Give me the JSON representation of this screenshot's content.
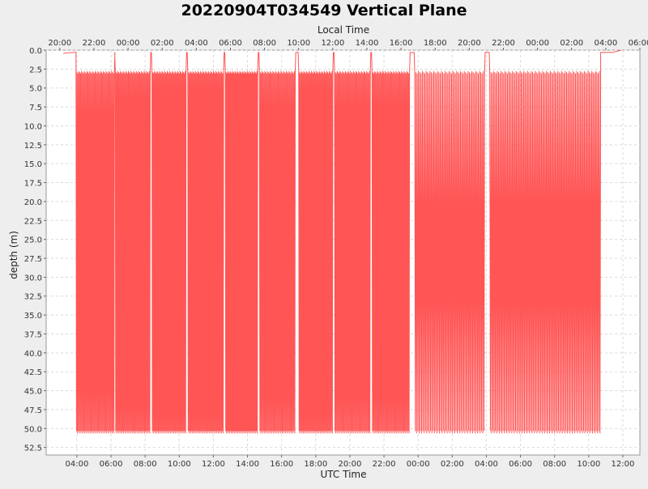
{
  "chart_data": {
    "type": "line",
    "title": "20220904T034549 Vertical Plane",
    "top_axis_label": "Local Time",
    "xlabel": "UTC Time",
    "ylabel": "depth (m)",
    "y_inverted": true,
    "ylim": [
      0,
      53.5
    ],
    "yticks": [
      "0.0",
      "2.5",
      "5.0",
      "7.5",
      "10.0",
      "12.5",
      "15.0",
      "17.5",
      "20.0",
      "22.5",
      "25.0",
      "27.5",
      "30.0",
      "32.5",
      "35.0",
      "37.5",
      "40.0",
      "42.5",
      "45.0",
      "47.5",
      "50.0",
      "52.5"
    ],
    "xlim_hours": [
      2.2,
      37.0
    ],
    "x_ticks_utc": [
      {
        "h": 4,
        "label": "04:00"
      },
      {
        "h": 6,
        "label": "06:00"
      },
      {
        "h": 8,
        "label": "08:00"
      },
      {
        "h": 10,
        "label": "10:00"
      },
      {
        "h": 12,
        "label": "12:00"
      },
      {
        "h": 14,
        "label": "14:00"
      },
      {
        "h": 16,
        "label": "16:00"
      },
      {
        "h": 18,
        "label": "18:00"
      },
      {
        "h": 20,
        "label": "20:00"
      },
      {
        "h": 22,
        "label": "22:00"
      },
      {
        "h": 24,
        "label": "00:00"
      },
      {
        "h": 26,
        "label": "02:00"
      },
      {
        "h": 28,
        "label": "04:00"
      },
      {
        "h": 30,
        "label": "06:00"
      },
      {
        "h": 32,
        "label": "08:00"
      },
      {
        "h": 34,
        "label": "10:00"
      },
      {
        "h": 36,
        "label": "12:00"
      }
    ],
    "x_ticks_local": [
      {
        "h": 3,
        "label": "20:00"
      },
      {
        "h": 5,
        "label": "22:00"
      },
      {
        "h": 7,
        "label": "00:00"
      },
      {
        "h": 9,
        "label": "02:00"
      },
      {
        "h": 11,
        "label": "04:00"
      },
      {
        "h": 13,
        "label": "06:00"
      },
      {
        "h": 15,
        "label": "08:00"
      },
      {
        "h": 17,
        "label": "10:00"
      },
      {
        "h": 19,
        "label": "12:00"
      },
      {
        "h": 21,
        "label": "14:00"
      },
      {
        "h": 23,
        "label": "16:00"
      },
      {
        "h": 25,
        "label": "18:00"
      },
      {
        "h": 27,
        "label": "20:00"
      },
      {
        "h": 29,
        "label": "22:00"
      },
      {
        "h": 31,
        "label": "00:00"
      },
      {
        "h": 33,
        "label": "02:00"
      },
      {
        "h": 35,
        "label": "04:00"
      },
      {
        "h": 37,
        "label": "06:00"
      }
    ],
    "grid": true,
    "series": [
      {
        "color": "#ff5555",
        "surface_depth_m": 2.8,
        "bottom_depth_m": 50.3,
        "segments": [
          {
            "start_h": 3.95,
            "end_h": 6.2,
            "cycles": 42
          },
          {
            "start_h": 6.25,
            "end_h": 8.3,
            "cycles": 40
          },
          {
            "start_h": 8.4,
            "end_h": 10.4,
            "cycles": 40
          },
          {
            "start_h": 10.5,
            "end_h": 12.6,
            "cycles": 42
          },
          {
            "start_h": 12.7,
            "end_h": 14.6,
            "cycles": 40
          },
          {
            "start_h": 14.7,
            "end_h": 16.8,
            "cycles": 40
          },
          {
            "start_h": 17.0,
            "end_h": 19.0,
            "cycles": 40
          },
          {
            "start_h": 19.1,
            "end_h": 21.2,
            "cycles": 40
          },
          {
            "start_h": 21.3,
            "end_h": 23.5,
            "cycles": 42
          },
          {
            "start_h": 23.8,
            "end_h": 27.9,
            "cycles": 55
          },
          {
            "start_h": 28.2,
            "end_h": 34.7,
            "cycles": 88
          }
        ]
      }
    ]
  }
}
